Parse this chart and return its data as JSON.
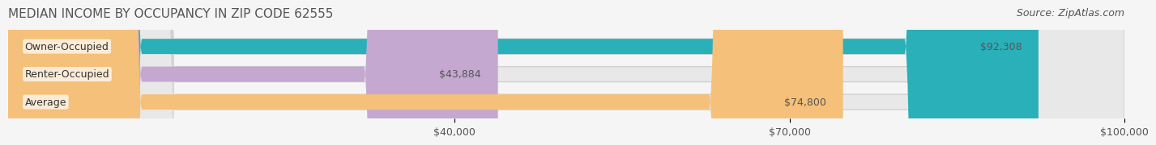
{
  "title": "MEDIAN INCOME BY OCCUPANCY IN ZIP CODE 62555",
  "source": "Source: ZipAtlas.com",
  "categories": [
    "Owner-Occupied",
    "Renter-Occupied",
    "Average"
  ],
  "values": [
    92308,
    43884,
    74800
  ],
  "bar_colors": [
    "#2ab0b8",
    "#c4a8d0",
    "#f5c07a"
  ],
  "bar_edge_colors": [
    "#2ab0b8",
    "#c4a8d0",
    "#f5c07a"
  ],
  "value_labels": [
    "$92,308",
    "$43,884",
    "$74,800"
  ],
  "xlim": [
    0,
    100000
  ],
  "xticks": [
    40000,
    70000,
    100000
  ],
  "xtick_labels": [
    "$40,000",
    "$70,000",
    "$100,000"
  ],
  "bg_color": "#f5f5f5",
  "bar_bg_color": "#e8e8e8",
  "title_fontsize": 11,
  "source_fontsize": 9,
  "label_fontsize": 9,
  "tick_fontsize": 9,
  "bar_height": 0.55,
  "label_text_color": "#555555",
  "value_text_color": "#555555",
  "title_color": "#555555"
}
